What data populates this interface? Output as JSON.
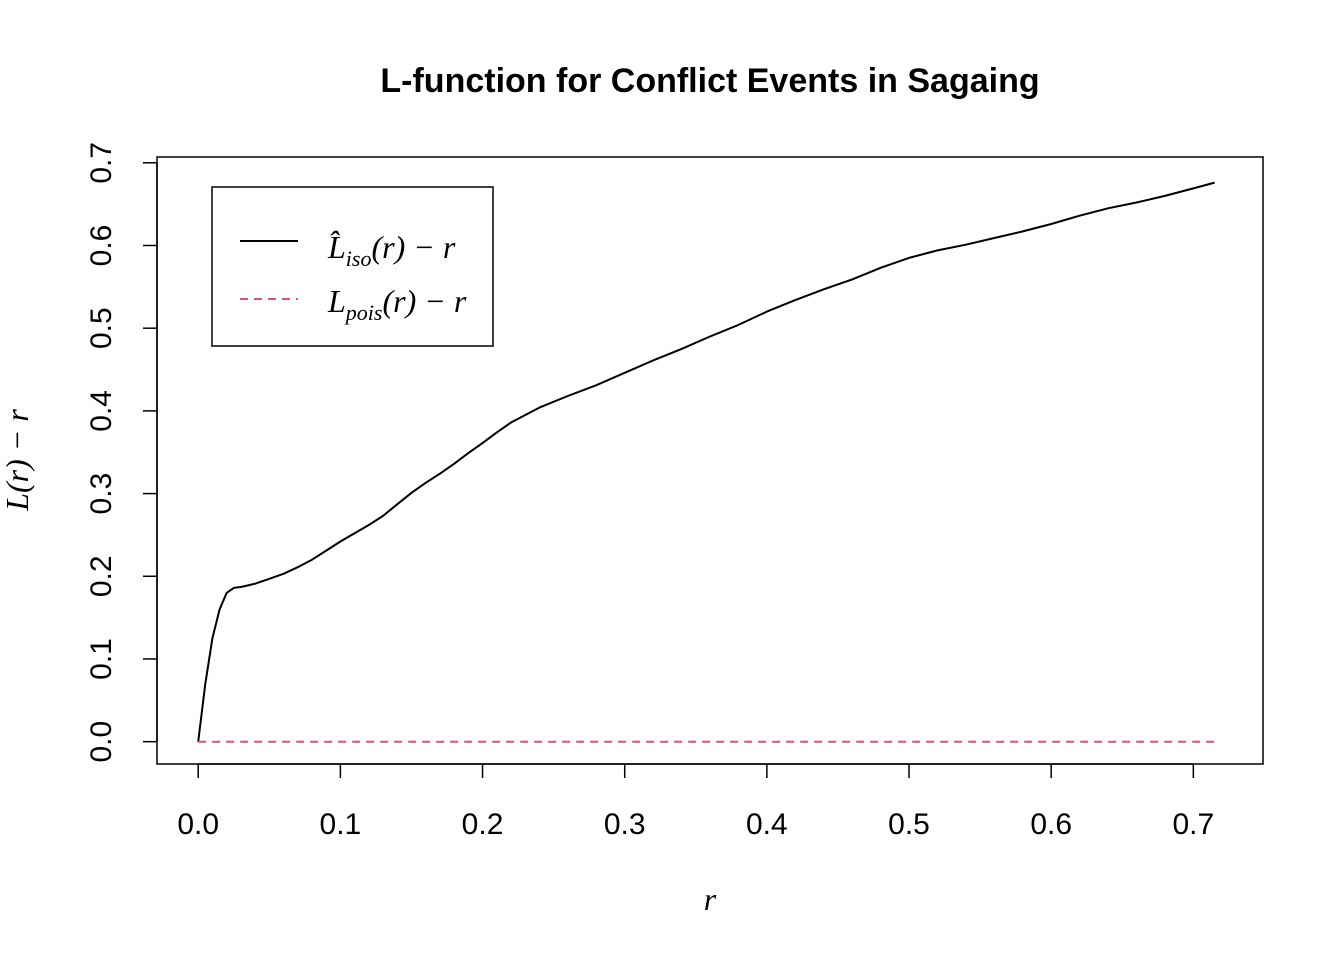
{
  "chart_data": {
    "type": "line",
    "title": "L-function for Conflict Events in Sagaing",
    "xlabel": "r",
    "ylabel": "L(r) − r",
    "xlim": [
      -0.029,
      0.749
    ],
    "ylim": [
      -0.027,
      0.707
    ],
    "x_ticks": [
      "0.0",
      "0.1",
      "0.2",
      "0.3",
      "0.4",
      "0.5",
      "0.6",
      "0.7"
    ],
    "y_ticks": [
      "0.0",
      "0.1",
      "0.2",
      "0.3",
      "0.4",
      "0.5",
      "0.6",
      "0.7"
    ],
    "grid": false,
    "legend_position": "top-left",
    "series": [
      {
        "name": "L̂iso(r) − r",
        "label_main": "L̂",
        "label_sub": "iso",
        "label_tail": "(r) − r",
        "color": "#000000",
        "dash": "solid",
        "x": [
          0.0,
          0.005,
          0.01,
          0.015,
          0.02,
          0.025,
          0.03,
          0.04,
          0.05,
          0.06,
          0.07,
          0.08,
          0.09,
          0.1,
          0.11,
          0.12,
          0.13,
          0.14,
          0.15,
          0.16,
          0.17,
          0.18,
          0.19,
          0.2,
          0.21,
          0.22,
          0.24,
          0.26,
          0.28,
          0.3,
          0.32,
          0.34,
          0.36,
          0.38,
          0.4,
          0.42,
          0.44,
          0.46,
          0.48,
          0.5,
          0.52,
          0.54,
          0.56,
          0.58,
          0.6,
          0.62,
          0.64,
          0.66,
          0.68,
          0.7,
          0.715
        ],
        "y": [
          0.0,
          0.07,
          0.125,
          0.16,
          0.18,
          0.186,
          0.187,
          0.191,
          0.197,
          0.203,
          0.211,
          0.22,
          0.231,
          0.242,
          0.252,
          0.262,
          0.273,
          0.287,
          0.301,
          0.313,
          0.324,
          0.336,
          0.349,
          0.361,
          0.374,
          0.386,
          0.404,
          0.418,
          0.431,
          0.446,
          0.461,
          0.475,
          0.49,
          0.504,
          0.52,
          0.534,
          0.547,
          0.559,
          0.573,
          0.585,
          0.594,
          0.601,
          0.609,
          0.617,
          0.626,
          0.636,
          0.645,
          0.652,
          0.66,
          0.669,
          0.676
        ]
      },
      {
        "name": "Lpois(r) − r",
        "label_main": "L",
        "label_sub": "pois",
        "label_tail": "(r) − r",
        "color": "#DF536B",
        "dash": "dashed",
        "x": [
          0.0,
          0.715
        ],
        "y": [
          0.0,
          0.0
        ]
      }
    ]
  }
}
